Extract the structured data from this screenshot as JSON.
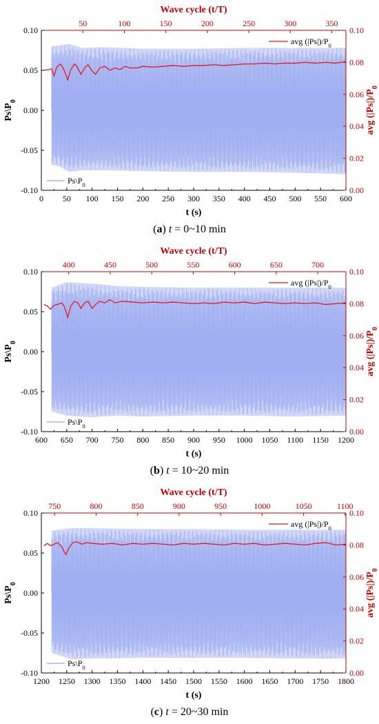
{
  "colors": {
    "ps_band": "#98a8f0",
    "avg_line": "#e4161c",
    "axis_red": "#c00000",
    "axis_black": "#000000"
  },
  "chart_data": [
    {
      "type": "line",
      "caption": {
        "letter": "a",
        "t_symbol": "t",
        "rest": " = 0~10 min"
      },
      "xlabel": "t (s)",
      "x2label": "Wave cycle (t/T)",
      "ylabel": "Ps\\P0",
      "y2label": "avg (|Ps|)/P0",
      "xlim": [
        0,
        600
      ],
      "x2lim": [
        0,
        367
      ],
      "ylim": [
        -0.1,
        0.1
      ],
      "y2lim": [
        0,
        0.1
      ],
      "xticks": [
        0,
        50,
        100,
        150,
        200,
        250,
        300,
        350,
        400,
        450,
        500,
        550,
        600
      ],
      "x2ticks": [
        50,
        100,
        150,
        200,
        250,
        300,
        350
      ],
      "yticks": [
        "0.10",
        "0.05",
        "0.00",
        "-0.05",
        "-0.10"
      ],
      "y2ticks": [
        "0.10",
        "0.08",
        "0.06",
        "0.04",
        "0.02",
        "0.00"
      ],
      "legend_top": "avg (|Ps|)/P0",
      "legend_bottom": "Ps\\P0",
      "series": [
        {
          "name": "Ps\\P0",
          "kind": "band",
          "axis": "left",
          "start": 20,
          "end": 600,
          "upper": [
            [
              20,
              0.08
            ],
            [
              35,
              0.081
            ],
            [
              55,
              0.083
            ],
            [
              80,
              0.078
            ],
            [
              120,
              0.079
            ],
            [
              200,
              0.077
            ],
            [
              300,
              0.077
            ],
            [
              400,
              0.078
            ],
            [
              500,
              0.078
            ],
            [
              600,
              0.078
            ]
          ],
          "lower": [
            [
              20,
              -0.068
            ],
            [
              35,
              -0.07
            ],
            [
              55,
              -0.077
            ],
            [
              80,
              -0.075
            ],
            [
              120,
              -0.075
            ],
            [
              200,
              -0.076
            ],
            [
              300,
              -0.077
            ],
            [
              400,
              -0.077
            ],
            [
              500,
              -0.078
            ],
            [
              600,
              -0.08
            ]
          ]
        },
        {
          "name": "avg (|Ps|)/P0",
          "kind": "line",
          "axis": "right",
          "points": [
            [
              5,
              0.075
            ],
            [
              15,
              0.0755
            ],
            [
              20,
              0.076
            ],
            [
              25,
              0.0715
            ],
            [
              30,
              0.077
            ],
            [
              38,
              0.079
            ],
            [
              45,
              0.075
            ],
            [
              52,
              0.069
            ],
            [
              58,
              0.0755
            ],
            [
              65,
              0.079
            ],
            [
              70,
              0.0775
            ],
            [
              78,
              0.0725
            ],
            [
              85,
              0.0765
            ],
            [
              92,
              0.0785
            ],
            [
              100,
              0.0745
            ],
            [
              107,
              0.0725
            ],
            [
              115,
              0.0765
            ],
            [
              125,
              0.0775
            ],
            [
              135,
              0.075
            ],
            [
              145,
              0.0765
            ],
            [
              155,
              0.0755
            ],
            [
              165,
              0.0775
            ],
            [
              175,
              0.0765
            ],
            [
              190,
              0.0765
            ],
            [
              200,
              0.0775
            ],
            [
              220,
              0.077
            ],
            [
              240,
              0.0775
            ],
            [
              260,
              0.078
            ],
            [
              280,
              0.0775
            ],
            [
              300,
              0.078
            ],
            [
              320,
              0.078
            ],
            [
              340,
              0.0785
            ],
            [
              360,
              0.078
            ],
            [
              380,
              0.0785
            ],
            [
              400,
              0.079
            ],
            [
              420,
              0.079
            ],
            [
              440,
              0.0795
            ],
            [
              460,
              0.079
            ],
            [
              480,
              0.0795
            ],
            [
              500,
              0.0795
            ],
            [
              520,
              0.08
            ],
            [
              540,
              0.0795
            ],
            [
              560,
              0.08
            ],
            [
              580,
              0.0795
            ],
            [
              600,
              0.0805
            ]
          ]
        }
      ]
    },
    {
      "type": "line",
      "caption": {
        "letter": "b",
        "t_symbol": "t",
        "rest": " = 10~20 min"
      },
      "xlabel": "t (s)",
      "x2label": "Wave cycle (t/T)",
      "ylabel": "Ps\\P0",
      "y2label": "avg (|Ps|)/P0",
      "xlim": [
        600,
        1200
      ],
      "x2lim": [
        367,
        734
      ],
      "ylim": [
        -0.1,
        0.1
      ],
      "y2lim": [
        0,
        0.1
      ],
      "xticks": [
        600,
        650,
        700,
        750,
        800,
        850,
        900,
        950,
        1000,
        1050,
        1100,
        1150,
        1200
      ],
      "x2ticks": [
        400,
        450,
        500,
        550,
        600,
        650,
        700
      ],
      "yticks": [
        "0.10",
        "0.05",
        "0.00",
        "-0.05",
        "-0.10"
      ],
      "y2ticks": [
        "0.10",
        "0.08",
        "0.06",
        "0.04",
        "0.02",
        "0.00"
      ],
      "legend_top": "avg (|Ps|)/P0",
      "legend_bottom": "Ps\\P0",
      "series": [
        {
          "name": "Ps\\P0",
          "kind": "band",
          "axis": "left",
          "start": 620,
          "end": 1200,
          "upper": [
            [
              620,
              0.08
            ],
            [
              650,
              0.087
            ],
            [
              700,
              0.085
            ],
            [
              750,
              0.082
            ],
            [
              800,
              0.081
            ],
            [
              900,
              0.08
            ],
            [
              1000,
              0.08
            ],
            [
              1100,
              0.08
            ],
            [
              1200,
              0.08
            ]
          ],
          "lower": [
            [
              620,
              -0.075
            ],
            [
              650,
              -0.08
            ],
            [
              700,
              -0.082
            ],
            [
              750,
              -0.08
            ],
            [
              800,
              -0.081
            ],
            [
              900,
              -0.08
            ],
            [
              1000,
              -0.08
            ],
            [
              1100,
              -0.081
            ],
            [
              1200,
              -0.08
            ]
          ]
        },
        {
          "name": "avg (|Ps|)/P0",
          "kind": "line",
          "axis": "right",
          "points": [
            [
              605,
              0.0795
            ],
            [
              612,
              0.0785
            ],
            [
              618,
              0.0765
            ],
            [
              625,
              0.079
            ],
            [
              632,
              0.0795
            ],
            [
              640,
              0.0805
            ],
            [
              645,
              0.0785
            ],
            [
              652,
              0.0715
            ],
            [
              658,
              0.0785
            ],
            [
              665,
              0.0815
            ],
            [
              672,
              0.0805
            ],
            [
              678,
              0.077
            ],
            [
              685,
              0.0805
            ],
            [
              692,
              0.0815
            ],
            [
              700,
              0.077
            ],
            [
              707,
              0.0795
            ],
            [
              715,
              0.0815
            ],
            [
              725,
              0.0805
            ],
            [
              735,
              0.0825
            ],
            [
              745,
              0.0805
            ],
            [
              760,
              0.0815
            ],
            [
              780,
              0.081
            ],
            [
              800,
              0.0805
            ],
            [
              820,
              0.081
            ],
            [
              840,
              0.0805
            ],
            [
              860,
              0.081
            ],
            [
              880,
              0.0805
            ],
            [
              900,
              0.08
            ],
            [
              920,
              0.0805
            ],
            [
              940,
              0.08
            ],
            [
              960,
              0.081
            ],
            [
              980,
              0.0805
            ],
            [
              1000,
              0.081
            ],
            [
              1020,
              0.08
            ],
            [
              1040,
              0.081
            ],
            [
              1060,
              0.0805
            ],
            [
              1080,
              0.08
            ],
            [
              1100,
              0.0805
            ],
            [
              1120,
              0.08
            ],
            [
              1140,
              0.0805
            ],
            [
              1160,
              0.0795
            ],
            [
              1180,
              0.08
            ],
            [
              1200,
              0.0805
            ]
          ]
        }
      ]
    },
    {
      "type": "line",
      "caption": {
        "letter": "c",
        "t_symbol": "t",
        "rest": " = 20~30 min"
      },
      "xlabel": "t (s)",
      "x2label": "Wave cycle (t/T)",
      "ylabel": "Ps\\P0",
      "y2label": "avg (|Ps|)/P0",
      "xlim": [
        1200,
        1800
      ],
      "x2lim": [
        734,
        1101
      ],
      "ylim": [
        -0.1,
        0.1
      ],
      "y2lim": [
        0,
        0.1
      ],
      "xticks": [
        1200,
        1250,
        1300,
        1350,
        1400,
        1450,
        1500,
        1550,
        1600,
        1650,
        1700,
        1750,
        1800
      ],
      "x2ticks": [
        750,
        800,
        850,
        900,
        950,
        1000,
        1050,
        1100
      ],
      "yticks": [
        "0.10",
        "0.05",
        "0.00",
        "-0.05",
        "-0.10"
      ],
      "y2ticks": [
        "0.10",
        "0.08",
        "0.06",
        "0.04",
        "0.02",
        "0.00"
      ],
      "legend_top": "avg (|Ps|)/P0",
      "legend_bottom": "Ps\\P0",
      "series": [
        {
          "name": "Ps\\P0",
          "kind": "band",
          "axis": "left",
          "start": 1220,
          "end": 1800,
          "upper": [
            [
              1220,
              0.078
            ],
            [
              1260,
              0.081
            ],
            [
              1300,
              0.081
            ],
            [
              1400,
              0.08
            ],
            [
              1500,
              0.08
            ],
            [
              1600,
              0.079
            ],
            [
              1700,
              0.079
            ],
            [
              1800,
              0.079
            ]
          ],
          "lower": [
            [
              1220,
              -0.075
            ],
            [
              1260,
              -0.083
            ],
            [
              1300,
              -0.082
            ],
            [
              1400,
              -0.081
            ],
            [
              1500,
              -0.081
            ],
            [
              1600,
              -0.081
            ],
            [
              1700,
              -0.082
            ],
            [
              1800,
              -0.082
            ]
          ]
        },
        {
          "name": "avg (|Ps|)/P0",
          "kind": "line",
          "axis": "right",
          "points": [
            [
              1205,
              0.0795
            ],
            [
              1212,
              0.081
            ],
            [
              1218,
              0.0795
            ],
            [
              1225,
              0.0805
            ],
            [
              1232,
              0.0815
            ],
            [
              1240,
              0.079
            ],
            [
              1248,
              0.074
            ],
            [
              1255,
              0.0785
            ],
            [
              1262,
              0.0815
            ],
            [
              1270,
              0.082
            ],
            [
              1280,
              0.0805
            ],
            [
              1290,
              0.0815
            ],
            [
              1300,
              0.081
            ],
            [
              1320,
              0.0805
            ],
            [
              1340,
              0.081
            ],
            [
              1360,
              0.08
            ],
            [
              1380,
              0.081
            ],
            [
              1400,
              0.0805
            ],
            [
              1420,
              0.081
            ],
            [
              1440,
              0.0805
            ],
            [
              1460,
              0.08
            ],
            [
              1480,
              0.081
            ],
            [
              1500,
              0.0805
            ],
            [
              1520,
              0.081
            ],
            [
              1540,
              0.0805
            ],
            [
              1560,
              0.08
            ],
            [
              1580,
              0.081
            ],
            [
              1600,
              0.0805
            ],
            [
              1620,
              0.081
            ],
            [
              1640,
              0.08
            ],
            [
              1660,
              0.0805
            ],
            [
              1680,
              0.081
            ],
            [
              1700,
              0.0805
            ],
            [
              1720,
              0.08
            ],
            [
              1740,
              0.081
            ],
            [
              1760,
              0.0815
            ],
            [
              1780,
              0.08
            ],
            [
              1800,
              0.0805
            ]
          ]
        }
      ]
    }
  ]
}
